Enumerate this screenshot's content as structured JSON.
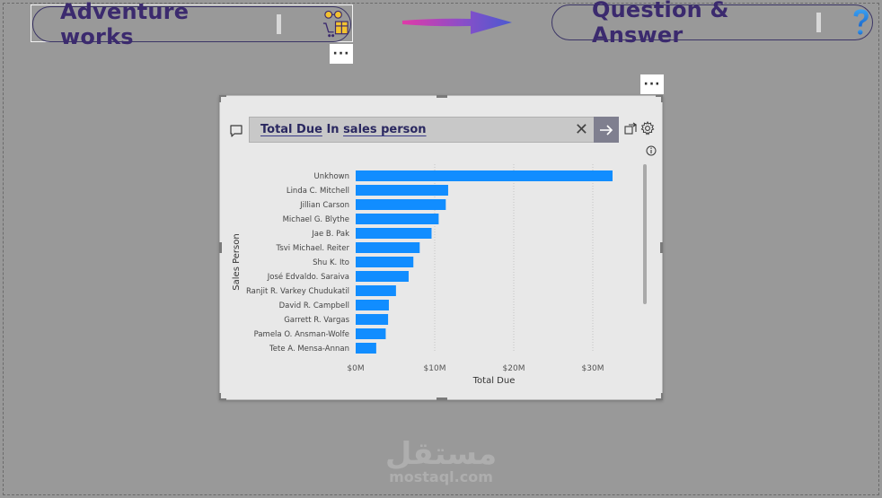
{
  "header": {
    "left_title": "Adventure works",
    "right_title": "Question & Answer",
    "menu_glyph": "···"
  },
  "qa": {
    "query_prefix": "Total Due",
    "query_mid": "In",
    "query_suffix": "sales person",
    "close_glyph": "✕"
  },
  "watermark": {
    "arabic": "مستقل",
    "latin": "mostaql.com"
  },
  "colors": {
    "bar": "#118dff",
    "title_text": "#3b2a6e",
    "background": "#999999"
  },
  "chart_data": {
    "type": "bar",
    "orientation": "horizontal",
    "categories": [
      "Unkhown",
      "Linda C. Mitchell",
      "Jillian Carson",
      "Michael G. Blythe",
      "Jae B. Pak",
      "Tsvi Michael. Reiter",
      "Shu K. Ito",
      "José Edvaldo. Saraiva",
      "Ranjit R. Varkey Chudukatil",
      "David R. Campbell",
      "Garrett R. Vargas",
      "Pamela O. Ansman-Wolfe",
      "Tete A. Mensa-Annan"
    ],
    "values": [
      32.5,
      11.7,
      11.4,
      10.5,
      9.6,
      8.1,
      7.3,
      6.7,
      5.1,
      4.2,
      4.1,
      3.8,
      2.6
    ],
    "xlabel": "Total Due",
    "ylabel": "Sales Person",
    "xticks": [
      "$0M",
      "$10M",
      "$20M",
      "$30M"
    ],
    "xlim": [
      0,
      35
    ],
    "grid": true
  }
}
